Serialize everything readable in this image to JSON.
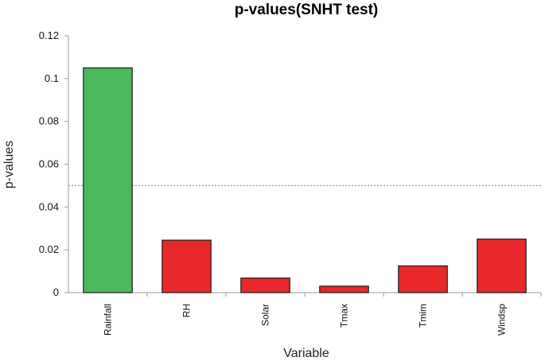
{
  "chart_data": {
    "type": "bar",
    "title": "p-values(SNHT test)",
    "xlabel": "Variable",
    "ylabel": "p-values",
    "categories": [
      "Rainfall",
      "RH",
      "Solar",
      "Tmax",
      "Tmim",
      "Windsp"
    ],
    "values": [
      0.105,
      0.0245,
      0.0068,
      0.003,
      0.0125,
      0.025
    ],
    "bar_colors": [
      "#4cb85c",
      "#e8282b",
      "#e8282b",
      "#e8282b",
      "#e8282b",
      "#e8282b"
    ],
    "ylim": [
      0,
      0.12
    ],
    "yticks": [
      0,
      0.02,
      0.04,
      0.06,
      0.08,
      0.1,
      0.12
    ],
    "ytick_labels": [
      "0",
      "0.02",
      "0.04",
      "0.06",
      "0.08",
      "0.1",
      "0.12"
    ],
    "reference_line": 0.05,
    "grid": false,
    "legend": "none"
  }
}
